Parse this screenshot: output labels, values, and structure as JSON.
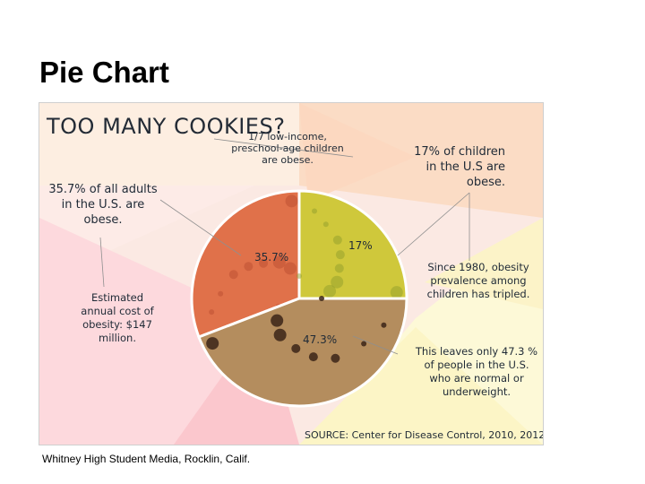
{
  "slide": {
    "title": "Pie Chart",
    "credit": "Whitney High Student Media, Rocklin, Calif."
  },
  "infographic": {
    "headline": "TOO MANY COOKIES?",
    "notes": {
      "low_income": "1/7 low-income, preschool-age children are obese.",
      "children": "17% of children in the U.S are obese.",
      "adults": "35.7% of all adults in the U.S. are obese.",
      "tripled": "Since 1980, obesity prevalence among children has tripled.",
      "cost": "Estimated annual cost of obesity: $147 million.",
      "leaves": "This leaves only 47.3 % of people in the U.S. who are normal or underweight."
    },
    "source": "SOURCE: Center for Disease Control, 2010, 2012"
  },
  "chart_data": {
    "type": "pie",
    "categories": [
      "Obese adults",
      "Obese children",
      "Normal or underweight"
    ],
    "values": [
      35.7,
      17,
      47.3
    ],
    "data_labels": [
      "35.7%",
      "17%",
      "47.3%"
    ],
    "colors": [
      "#e0714a",
      "#cfc83b",
      "#b48d5e"
    ],
    "title": "TOO MANY COOKIES?"
  }
}
